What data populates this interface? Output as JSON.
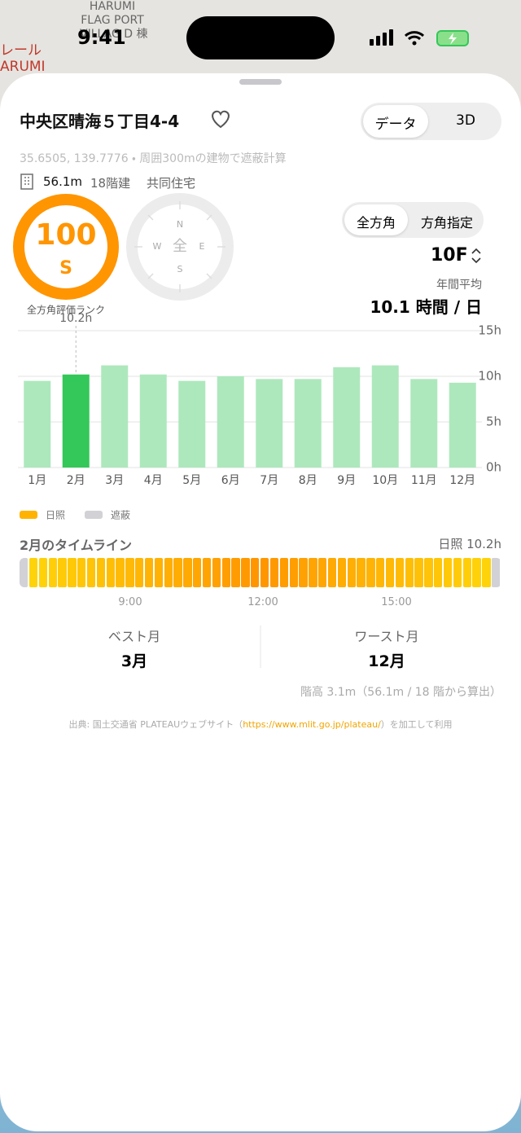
{
  "status_bar": {
    "time": "9:41"
  },
  "map": {
    "labels": [
      "HARUMI",
      "FLAG PORT",
      "VILLAG D 棟",
      "レール",
      "ARUMI"
    ]
  },
  "header": {
    "title": "中央区晴海５丁目4-4",
    "tabs": [
      "データ",
      "3D"
    ]
  },
  "location": "35.6505, 139.7776 ・ 周囲300mの建物で遮蔽計算",
  "building": {
    "height": "56.1m",
    "floors": "18階建",
    "use": "共同住宅"
  },
  "rank": {
    "score": "100",
    "grade": "S",
    "label": "全方角評価ランク"
  },
  "compass": {
    "directions": [
      "N",
      "E",
      "S",
      "W"
    ],
    "center": "全"
  },
  "direction_tabs": [
    "全方角",
    "方角指定"
  ],
  "floor": "10F",
  "annual": {
    "label": "年間平均",
    "value": "10.1 時間 / 日"
  },
  "chart_data": {
    "type": "bar",
    "categories": [
      "1月",
      "2月",
      "3月",
      "4月",
      "5月",
      "6月",
      "7月",
      "8月",
      "9月",
      "10月",
      "11月",
      "12月"
    ],
    "values": [
      9.5,
      10.2,
      11.2,
      10.2,
      9.5,
      10.0,
      9.7,
      9.7,
      11.0,
      11.2,
      9.7,
      9.3
    ],
    "colors": [
      "#ade8bd",
      "#34c759",
      "#ade8bd",
      "#ade8bd",
      "#ade8bd",
      "#ade8bd",
      "#ade8bd",
      "#ade8bd",
      "#ade8bd",
      "#ade8bd",
      "#ade8bd",
      "#ade8bd"
    ],
    "annotation": {
      "text": "10.2h",
      "category": "2月"
    },
    "ylim": [
      0,
      15
    ],
    "yticks": [
      {
        "value": 0,
        "label": "0h"
      },
      {
        "value": 5,
        "label": "5h"
      },
      {
        "value": 10,
        "label": "10h"
      },
      {
        "value": 15,
        "label": "15h"
      }
    ],
    "grid": true
  },
  "legend": [
    {
      "name": "日照",
      "color": "#ffb300"
    },
    {
      "name": "遮蔽",
      "color": "#d1d1d6"
    }
  ],
  "timeline": {
    "title": "2月のタイムライン",
    "summary": "日照 10.2h",
    "ticks": [
      "9:00",
      "12:00",
      "15:00"
    ]
  },
  "best": {
    "label": "ベスト月",
    "value": "3月"
  },
  "worst": {
    "label": "ワースト月",
    "value": "12月"
  },
  "floor_height": "階高 3.1m（56.1m / 18 階から算出）",
  "source": {
    "prefix": "出典: 国土交通省 PLATEAUウェブサイト（",
    "link": "https://www.mlit.go.jp/plateau/",
    "suffix": "）を加工して利用"
  }
}
